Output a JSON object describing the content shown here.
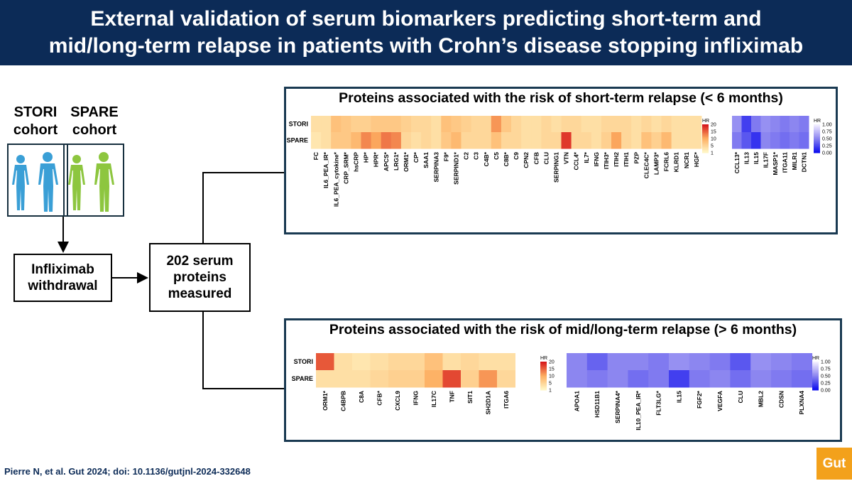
{
  "title": {
    "line1": "External validation of serum biomarkers predicting short-term and",
    "line2": "mid/long-term relapse in patients with Crohn’s disease stopping infliximab"
  },
  "cohorts": {
    "stori": {
      "line1": "STORI",
      "line2": "cohort",
      "color": "#3a9fd6"
    },
    "spare": {
      "line1": "SPARE",
      "line2": "cohort",
      "color": "#8dc63f"
    }
  },
  "flow": {
    "withdrawal": {
      "line1": "Infliximab",
      "line2": "withdrawal"
    },
    "measured": {
      "line1": "202 serum",
      "line2": "proteins",
      "line3": "measured"
    }
  },
  "short_term": {
    "title": "Proteins associated with the risk of short-term relapse (< 6 months)"
  },
  "mid_long_term": {
    "title": "Proteins associated with the risk of mid/long-term relapse (> 6 months)"
  },
  "chart_data": [
    {
      "type": "heatmap",
      "name": "short-term increased risk",
      "rows": [
        "STORI",
        "SPARE"
      ],
      "columns": [
        "FC",
        "IL6_PEA_IR*",
        "IL6_PEA_cytokine*",
        "CRP_SRM*",
        "hsCRP",
        "HP*",
        "HPR*",
        "APCS*",
        "LRG1*",
        "ORM1*",
        "CP*",
        "SAA1",
        "SERPINA3",
        "F9*",
        "SERPIND1*",
        "C2",
        "C3",
        "C4B*",
        "C5",
        "C8B*",
        "C9",
        "CPN2",
        "CFB",
        "CLU",
        "SERPING1",
        "VTN",
        "CCL4*",
        "IL7*",
        "IFNG",
        "ITIH3*",
        "ITIH2",
        "ITIH1",
        "PZP",
        "CLEC4C*",
        "LAMP3*",
        "FCRL6",
        "KLRD1",
        "NCR1",
        "HGF*"
      ],
      "values": [
        [
          4,
          4,
          8,
          7,
          6,
          6,
          7,
          7,
          7,
          6,
          5,
          5,
          4,
          8,
          7,
          6,
          5,
          5,
          12,
          7,
          5,
          4,
          4,
          5,
          4,
          5,
          5,
          4,
          4,
          5,
          5,
          5,
          4,
          5,
          4,
          5,
          4,
          4,
          4
        ],
        [
          3,
          4,
          7,
          7,
          9,
          13,
          11,
          14,
          13,
          5,
          4,
          5,
          4,
          7,
          9,
          5,
          5,
          5,
          8,
          5,
          5,
          4,
          4,
          5,
          5,
          18,
          5,
          5,
          4,
          6,
          11,
          5,
          4,
          8,
          6,
          9,
          4,
          4,
          4
        ]
      ],
      "colorbar": {
        "title": "HR",
        "ticks": [
          "20",
          "15",
          "10",
          "5",
          "1"
        ],
        "range": [
          1,
          20
        ],
        "colors": [
          "#fff5c4",
          "#d7191c"
        ]
      }
    },
    {
      "type": "heatmap",
      "name": "short-term decreased risk",
      "rows": [
        "STORI",
        "SPARE"
      ],
      "columns": [
        "CCL13*",
        "IL13",
        "IL15",
        "IL17F",
        "MASP1*",
        "ITGA11",
        "MILR1",
        "DCTN1"
      ],
      "values": [
        [
          0.55,
          0.2,
          0.45,
          0.55,
          0.5,
          0.45,
          0.5,
          0.45
        ],
        [
          0.45,
          0.3,
          0.15,
          0.5,
          0.45,
          0.4,
          0.45,
          0.4
        ]
      ],
      "colorbar": {
        "title": "HR",
        "ticks": [
          "1.00",
          "0.75",
          "0.50",
          "0.25",
          "0.00"
        ],
        "range": [
          0,
          1
        ],
        "colors": [
          "#1010ee",
          "#f2eeff"
        ]
      }
    },
    {
      "type": "heatmap",
      "name": "mid/long-term increased risk",
      "rows": [
        "STORI",
        "SPARE"
      ],
      "columns": [
        "ORM1*",
        "C4BPB",
        "C8A",
        "CFB*",
        "CXCL9",
        "IFNG",
        "IL17C",
        "TNF",
        "SIT1",
        "SH2D1A",
        "ITGA6"
      ],
      "values": [
        [
          16,
          4,
          3,
          4,
          5,
          5,
          8,
          4,
          5,
          4,
          4
        ],
        [
          4,
          4,
          4,
          5,
          6,
          6,
          10,
          17,
          6,
          12,
          5
        ]
      ],
      "colorbar": {
        "title": "HR",
        "ticks": [
          "20",
          "15",
          "10",
          "5",
          "1"
        ],
        "range": [
          1,
          20
        ],
        "colors": [
          "#fff5c4",
          "#d7191c"
        ]
      }
    },
    {
      "type": "heatmap",
      "name": "mid/long-term decreased risk",
      "rows": [
        "STORI",
        "SPARE"
      ],
      "columns": [
        "APOA1",
        "HSD11B1",
        "SERPINA4*",
        "IL10_PEA_IR*",
        "FLT3LG*",
        "IL15",
        "FGF2*",
        "VEGFA",
        "CLU",
        "MBL2",
        "CDSN",
        "PLXNA4"
      ],
      "values": [
        [
          0.5,
          0.35,
          0.5,
          0.5,
          0.45,
          0.55,
          0.5,
          0.45,
          0.3,
          0.55,
          0.5,
          0.45
        ],
        [
          0.5,
          0.45,
          0.5,
          0.4,
          0.45,
          0.2,
          0.45,
          0.5,
          0.4,
          0.5,
          0.45,
          0.4
        ]
      ],
      "colorbar": {
        "title": "HR",
        "ticks": [
          "1.00",
          "0.75",
          "0.50",
          "0.25",
          "0.00"
        ],
        "range": [
          0,
          1
        ],
        "colors": [
          "#1010ee",
          "#f2eeff"
        ]
      }
    }
  ],
  "citation": "Pierre N, et al. Gut 2024; doi: 10.1136/gutjnl-2024-332648",
  "logo": "Gut"
}
